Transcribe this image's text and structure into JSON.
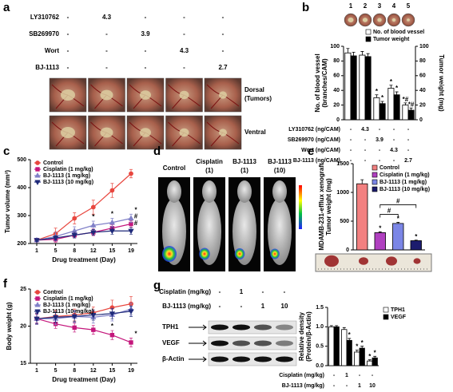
{
  "panels": {
    "a": {
      "label": "a",
      "treatments": [
        {
          "name": "LY310762",
          "values": [
            "-",
            "4.3",
            "-",
            "-",
            "-"
          ]
        },
        {
          "name": "SB269970",
          "values": [
            "-",
            "-",
            "3.9",
            "-",
            "-"
          ]
        },
        {
          "name": "Wort",
          "values": [
            "-",
            "-",
            "-",
            "4.3",
            "-"
          ]
        },
        {
          "name": "BJ-1113",
          "values": [
            "-",
            "-",
            "-",
            "-",
            "2.7"
          ]
        }
      ],
      "rows": [
        [
          "Dorsal",
          "(Tumors)"
        ],
        [
          "Ventral"
        ]
      ]
    },
    "d": {
      "label": "d",
      "groups": [
        [
          "Control"
        ],
        [
          "Cisplatin",
          "(1)"
        ],
        [
          "BJ-1113",
          "(1)"
        ],
        [
          "BJ-1113",
          "(10)"
        ]
      ]
    },
    "g": {
      "label": "g",
      "conditions": [
        {
          "label": "Cisplatin (mg/kg)",
          "values": [
            "-",
            "1",
            "-",
            "-"
          ]
        },
        {
          "label": "BJ-1113 (mg/kg)",
          "values": [
            "-",
            "-",
            "1",
            "10"
          ]
        }
      ],
      "bands": [
        "TPH1",
        "VEGF",
        "β-Actin"
      ]
    }
  },
  "chart_data": [
    {
      "type": "bar",
      "panel_label": "b",
      "categories": [
        "1",
        "2",
        "3",
        "4",
        "5"
      ],
      "ylabel": [
        "No. of blood vessel",
        "(branches/CAM)"
      ],
      "y2label": "Tumor weight (mg)",
      "ylim": [
        0,
        100
      ],
      "yticks": [
        0,
        20,
        40,
        60,
        80,
        100
      ],
      "y2lim": [
        0,
        100
      ],
      "y2ticks": [
        0,
        20,
        40,
        60,
        80,
        100
      ],
      "legend": "upper right",
      "series": [
        {
          "name": "No. of blood vessel",
          "color": "#ffffff",
          "values": [
            91,
            88,
            30,
            43,
            20
          ],
          "errors": [
            6,
            5,
            4,
            4,
            3
          ],
          "significance": [
            null,
            null,
            "*",
            "*",
            "*#"
          ]
        },
        {
          "name": "Tumor weight",
          "color": "#000000",
          "axis": "y2",
          "values": [
            87,
            86,
            22,
            34,
            13
          ],
          "errors": [
            5,
            4,
            3,
            4,
            3
          ],
          "significance": [
            null,
            null,
            "*",
            "*",
            "*#"
          ]
        }
      ],
      "conditions": [
        {
          "label": "LY310762 (ng/CAM)",
          "values": [
            "-",
            "4.3",
            "-",
            "-",
            "-"
          ]
        },
        {
          "label": "SB269970 (ng/CAM)",
          "values": [
            "-",
            "-",
            "3.9",
            "-",
            "-"
          ]
        },
        {
          "label": "Wort (ng/CAM)",
          "values": [
            "-",
            "-",
            "-",
            "4.3",
            "-"
          ]
        },
        {
          "label": "BJ-1113 (ng/CAM)",
          "values": [
            "-",
            "-",
            "-",
            "-",
            "2.7"
          ]
        }
      ]
    },
    {
      "type": "line",
      "panel_label": "c",
      "categories": [
        "1",
        "5",
        "8",
        "12",
        "15",
        "19"
      ],
      "xlabel": "Drug treatment (Day)",
      "ylabel": "Tumor volume (mm³)",
      "ylim": [
        200,
        500
      ],
      "yticks": [
        200,
        300,
        400,
        500
      ],
      "legend": "upper left",
      "series": [
        {
          "name": "Control",
          "color": "#e8473f",
          "marker": "circle",
          "values": [
            212,
            235,
            290,
            330,
            390,
            450
          ],
          "errors": [
            5,
            20,
            20,
            25,
            25,
            15
          ]
        },
        {
          "name": "Cisplatin (1 mg/kg)",
          "color": "#c4177c",
          "marker": "square",
          "values": [
            212,
            215,
            230,
            240,
            255,
            270
          ],
          "errors": [
            5,
            10,
            10,
            12,
            12,
            12
          ],
          "significance": [
            null,
            null,
            null,
            null,
            null,
            "#"
          ]
        },
        {
          "name": "BJ-1113 (1 mg/kg)",
          "color": "#8080c8",
          "marker": "triangle-up",
          "values": [
            212,
            225,
            245,
            265,
            275,
            290
          ],
          "errors": [
            5,
            15,
            15,
            15,
            15,
            15
          ],
          "significance": [
            null,
            null,
            null,
            "*",
            "*",
            "*"
          ]
        },
        {
          "name": "BJ-1113 (10 mg/kg)",
          "color": "#1f2a7a",
          "marker": "triangle-down",
          "values": [
            212,
            220,
            230,
            240,
            245,
            245
          ],
          "errors": [
            5,
            8,
            10,
            10,
            12,
            12
          ],
          "significance": [
            null,
            null,
            null,
            null,
            null,
            "#"
          ]
        }
      ]
    },
    {
      "type": "bar",
      "panel_label": "e",
      "categories": [
        "Control",
        "Cisplatin (1 mg/kg)",
        "BJ-1113 (1 mg/kg)",
        "BJ-1113 (10 mg/kg)"
      ],
      "colors": [
        "#f28080",
        "#b040c0",
        "#7b86e6",
        "#1c1c6e"
      ],
      "values": [
        1150,
        300,
        460,
        160
      ],
      "errors": [
        70,
        15,
        20,
        10
      ],
      "significance": [
        null,
        "*",
        "*",
        "*"
      ],
      "ylabel": [
        "MDAMB-231-efflux xenograft",
        "Tumor weight (mg)"
      ],
      "ylim": [
        0,
        1500
      ],
      "yticks": [
        0,
        500,
        1000,
        1500
      ],
      "legend": "upper right",
      "comparisons": [
        {
          "from": 1,
          "to": 2,
          "text": "#"
        },
        {
          "from": 1,
          "to": 3,
          "text": "#"
        }
      ]
    },
    {
      "type": "line",
      "panel_label": "f",
      "categories": [
        "1",
        "5",
        "8",
        "12",
        "15",
        "19"
      ],
      "xlabel": "Drug treatment (Day)",
      "ylabel": "Body weight (g)",
      "ylim": [
        15,
        25
      ],
      "yticks": [
        15,
        20,
        25
      ],
      "legend": "upper left",
      "series": [
        {
          "name": "Control",
          "color": "#e8473f",
          "marker": "circle",
          "values": [
            21,
            21.3,
            21.5,
            21.8,
            22.5,
            23
          ],
          "errors": [
            0.8,
            0.8,
            0.8,
            0.8,
            1,
            1
          ]
        },
        {
          "name": "Cisplatin (1 mg/kg)",
          "color": "#c4177c",
          "marker": "square",
          "values": [
            21,
            20.3,
            19.8,
            19.5,
            18.8,
            17.8
          ],
          "errors": [
            0.6,
            0.6,
            0.6,
            0.6,
            0.6,
            0.6
          ],
          "significance": [
            null,
            null,
            null,
            null,
            "*",
            "*"
          ]
        },
        {
          "name": "BJ-1113 (1 mg/kg)",
          "color": "#8080c8",
          "marker": "triangle-up",
          "values": [
            21,
            21,
            21.3,
            21.2,
            21.5,
            22.3
          ],
          "errors": [
            0.8,
            0.8,
            0.8,
            0.8,
            0.8,
            0.8
          ]
        },
        {
          "name": "BJ-1113 (10 mg/kg)",
          "color": "#1f2a7a",
          "marker": "triangle-down",
          "values": [
            21,
            21.2,
            21.3,
            21.5,
            21.7,
            22
          ],
          "errors": [
            0.7,
            0.7,
            0.7,
            0.7,
            0.7,
            0.7
          ]
        }
      ]
    },
    {
      "type": "bar",
      "categories": [
        null,
        null,
        null,
        null
      ],
      "ylabel": [
        "Relative density",
        "(Protein/β-Actin)"
      ],
      "ylim": [
        0,
        1.5
      ],
      "yticks": [
        {
          "value": 0,
          "label": "0.0"
        },
        0.5,
        {
          "value": 1,
          "label": "1.0"
        },
        1.5
      ],
      "legend": "right",
      "series": [
        {
          "name": "TPH1",
          "color": "#ffffff",
          "values": [
            1,
            0.93,
            0.35,
            0.12
          ],
          "errors": [
            0.03,
            0.05,
            0.05,
            0.03
          ],
          "significance": [
            null,
            null,
            "*",
            "*"
          ]
        },
        {
          "name": "VEGF",
          "color": "#000000",
          "values": [
            1,
            0.65,
            0.45,
            0.2
          ],
          "errors": [
            0.03,
            0.05,
            0.05,
            0.04
          ],
          "significance": [
            null,
            "*",
            "*",
            "*"
          ]
        }
      ],
      "conditions": [
        {
          "label": "Cisplatin (mg/kg)",
          "values": [
            "-",
            "1",
            "-",
            "-"
          ]
        },
        {
          "label": "BJ-1113 (mg/kg)",
          "values": [
            "-",
            "-",
            "1",
            "10"
          ]
        }
      ]
    }
  ]
}
